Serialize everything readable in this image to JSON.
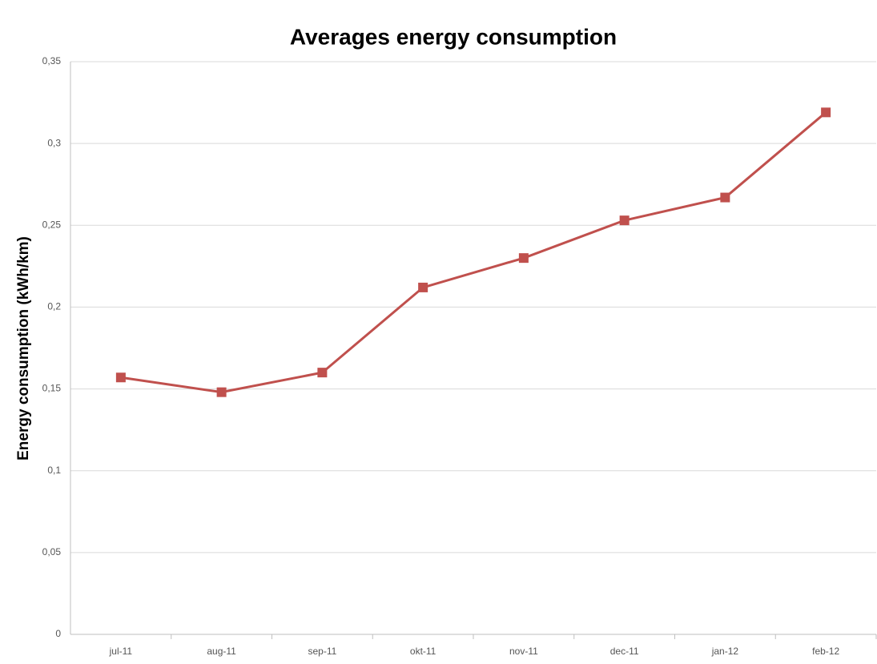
{
  "chart_data": {
    "type": "line",
    "title": "Averages energy consumption",
    "y_label": "Energy consumption (kWh/km)",
    "categories": [
      "jul-11",
      "aug-11",
      "sep-11",
      "okt-11",
      "nov-11",
      "dec-11",
      "jan-12",
      "feb-12"
    ],
    "series": [
      {
        "color": "#c0504d",
        "values": [
          0.157,
          0.148,
          0.16,
          0.212,
          0.23,
          0.253,
          0.267,
          0.319
        ]
      }
    ],
    "ylim": [
      0,
      0.35
    ],
    "yticks": [
      0,
      {
        "value": 0.05,
        "label": "0,05"
      },
      {
        "value": 0.1,
        "label": "0,1"
      },
      {
        "value": 0.15,
        "label": "0,15"
      },
      {
        "value": 0.2,
        "label": "0,2"
      },
      {
        "value": 0.25,
        "label": "0,25"
      },
      {
        "value": 0.3,
        "label": "0,3"
      },
      {
        "value": 0.35,
        "label": "0,35"
      }
    ],
    "grid": true
  }
}
